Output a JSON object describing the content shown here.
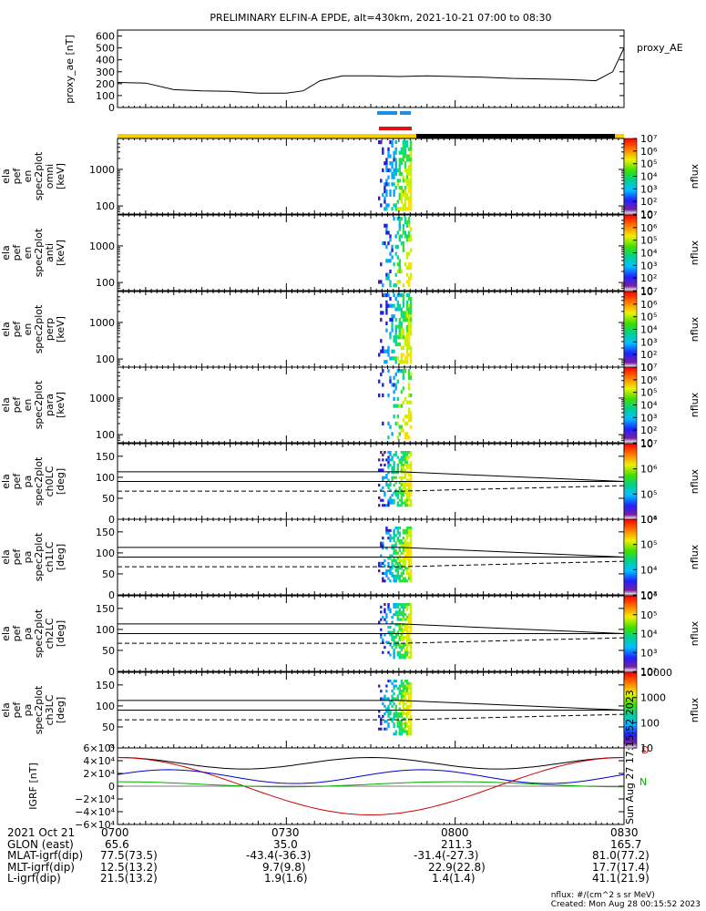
{
  "title": "PRELIMINARY ELFIN-A EPDE, alt=430km, 2021-10-21 07:00 to 08:30",
  "colors": {
    "sunlit_bar": "#f5d000",
    "eclipse_bar": "#000000",
    "blue_segment": "#1e8fe6",
    "red_segment": "#e01010",
    "grf_d": "#000000",
    "grf_red": "#d00000",
    "grf_blue": "#0000d0",
    "grf_green": "#00b000"
  },
  "labels": {
    "vs_date": "2021 Oct 21",
    "glon": "GLON (east)",
    "mlat": "MLAT-igrf(dip)",
    "mlt": "MLT-igrf(dip)",
    "lshell": "L-igrf(dip)",
    "credit_units": "nflux: #/(cm^2 s sr MeV)",
    "credit_created": "Created: Mon Aug 28 00:15:52 2023",
    "side_stamp": "Sun Aug 27 17:15:52 2023",
    "grf_d": "D",
    "grf_n": "N"
  },
  "timeaxis": [
    {
      "time": "0700",
      "glon": "65.6",
      "mlat": "77.5(73.5)",
      "mlt": "12.5(13.2)",
      "l": "21.5(13.2)"
    },
    {
      "time": "0730",
      "glon": "35.0",
      "mlat": "-43.4(-36.3)",
      "mlt": "9.7(9.8)",
      "l": "1.9(1.6)"
    },
    {
      "time": "0800",
      "glon": "211.3",
      "mlat": "-31.4(-27.3)",
      "mlt": "22.9(22.8)",
      "l": "1.4(1.4)"
    },
    {
      "time": "0830",
      "glon": "165.7",
      "mlat": "81.0(77.2)",
      "mlt": "17.7(17.4)",
      "l": "41.1(21.9)"
    }
  ],
  "chart_data": [
    {
      "type": "line",
      "panel": "proxy_ae",
      "ylabel": "proxy_ae [nT]",
      "legend": "proxy_AE",
      "legend_position": "right",
      "ylim": [
        0,
        650
      ],
      "yticks": [
        "0",
        "100",
        "200",
        "300",
        "400",
        "500",
        "600"
      ],
      "x_minutes": [
        0,
        5,
        10,
        15,
        20,
        25,
        30,
        33,
        36,
        40,
        45,
        50,
        55,
        60,
        65,
        70,
        75,
        80,
        85,
        88,
        90
      ],
      "values": [
        210,
        205,
        150,
        140,
        135,
        120,
        120,
        140,
        225,
        265,
        265,
        260,
        265,
        260,
        255,
        245,
        240,
        235,
        225,
        300,
        500
      ]
    },
    {
      "type": "heatmap",
      "panel": "omni",
      "ylabel": [
        "ela",
        "pef",
        "en",
        "spec2plot",
        "omni",
        "[keV]"
      ],
      "yscale": "log",
      "yticks": [
        "100",
        "1000"
      ],
      "colorbar": {
        "label": "nflux",
        "ticks": [
          "10",
          "10²",
          "10³",
          "10⁴",
          "10⁵",
          "10⁶",
          "10⁷"
        ]
      }
    },
    {
      "type": "heatmap",
      "panel": "anti",
      "ylabel": [
        "ela",
        "pef",
        "en",
        "spec2plot",
        "anti",
        "[keV]"
      ],
      "yscale": "log",
      "yticks": [
        "100",
        "1000"
      ],
      "colorbar": {
        "label": "nflux",
        "ticks": [
          "10",
          "10²",
          "10³",
          "10⁴",
          "10⁵",
          "10⁶",
          "10⁷"
        ]
      }
    },
    {
      "type": "heatmap",
      "panel": "perp",
      "ylabel": [
        "ela",
        "pef",
        "en",
        "spec2plot",
        "perp",
        "[keV]"
      ],
      "yscale": "log",
      "yticks": [
        "100",
        "1000"
      ],
      "colorbar": {
        "label": "nflux",
        "ticks": [
          "10",
          "10²",
          "10³",
          "10⁴",
          "10⁵",
          "10⁶",
          "10⁷"
        ]
      }
    },
    {
      "type": "heatmap",
      "panel": "para",
      "ylabel": [
        "ela",
        "pef",
        "en",
        "spec2plot",
        "para",
        "[keV]"
      ],
      "yscale": "log",
      "yticks": [
        "100",
        "1000"
      ],
      "colorbar": {
        "label": "nflux",
        "ticks": [
          "10",
          "10²",
          "10³",
          "10⁴",
          "10⁵",
          "10⁶",
          "10⁷"
        ]
      }
    },
    {
      "type": "heatmap",
      "panel": "ch0LC",
      "ylabel": [
        "ela",
        "pef",
        "pa",
        "spec2plot",
        "ch0LC",
        "[deg]"
      ],
      "ylim": [
        0,
        180
      ],
      "yticks": [
        "0",
        "50",
        "100",
        "150"
      ],
      "colorbar": {
        "label": "nflux",
        "ticks": [
          "10⁴",
          "10⁵",
          "10⁶",
          "10⁷"
        ]
      }
    },
    {
      "type": "heatmap",
      "panel": "ch1LC",
      "ylabel": [
        "ela",
        "pef",
        "pa",
        "spec2plot",
        "ch1LC",
        "[deg]"
      ],
      "ylim": [
        0,
        180
      ],
      "yticks": [
        "0",
        "50",
        "100",
        "150"
      ],
      "colorbar": {
        "label": "nflux",
        "ticks": [
          "10³",
          "10⁴",
          "10⁵",
          "10⁶"
        ]
      }
    },
    {
      "type": "heatmap",
      "panel": "ch2LC",
      "ylabel": [
        "ela",
        "pef",
        "pa",
        "spec2plot",
        "ch2LC",
        "[deg]"
      ],
      "ylim": [
        0,
        180
      ],
      "yticks": [
        "0",
        "50",
        "100",
        "150"
      ],
      "colorbar": {
        "label": "nflux",
        "ticks": [
          "10²",
          "10³",
          "10⁴",
          "10⁵",
          "10⁶"
        ]
      }
    },
    {
      "type": "heatmap",
      "panel": "ch3LC",
      "ylabel": [
        "ela",
        "pef",
        "pa",
        "spec2plot",
        "ch3LC",
        "[deg]"
      ],
      "ylim": [
        0,
        180
      ],
      "yticks": [
        "0",
        "50",
        "100",
        "150"
      ],
      "colorbar": {
        "label": "nflux",
        "ticks": [
          "10",
          "100",
          "1000",
          "10000"
        ]
      }
    },
    {
      "type": "line",
      "panel": "IGRF",
      "ylabel": "IGRF [nT]",
      "ylim": [
        -60000,
        60000
      ],
      "yticks": [
        "−6×10⁴",
        "−4×10⁴",
        "−2×10⁴",
        "0",
        "2×10⁴",
        "4×10⁴",
        "6×10⁴"
      ],
      "yticks_positive": [
        "6×10⁴",
        "4×10⁴",
        "2×10⁴"
      ],
      "yticks_negative": [
        "−2×10⁴",
        "−4×10⁴",
        "−6×10⁴"
      ]
    }
  ]
}
